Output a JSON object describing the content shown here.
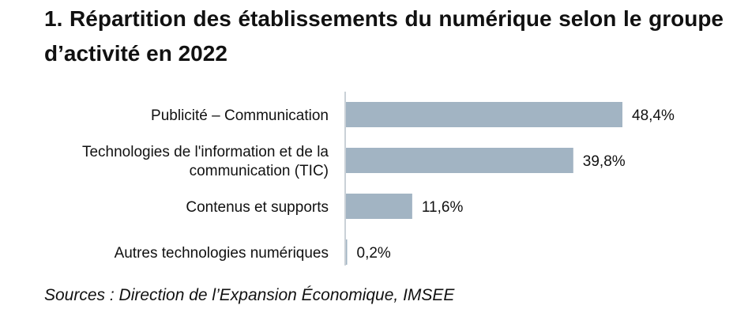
{
  "title": "1. Répartition des établissements du numérique selon le groupe d’activité en 2022",
  "source": "Sources : Direction de l’Expansion Économique, IMSEE",
  "chart_data": {
    "type": "bar",
    "orientation": "horizontal",
    "categories": [
      [
        "Publicité – Communication"
      ],
      [
        "Technologies de l'information et de la",
        "communication (TIC)"
      ],
      [
        "Contenus et supports"
      ],
      [
        "Autres technologies numériques"
      ]
    ],
    "values": [
      48.4,
      39.8,
      11.6,
      0.2
    ],
    "value_labels": [
      "48,4%",
      "39,8%",
      "11,6%",
      "0,2%"
    ],
    "unit": "%",
    "xlim": [
      0,
      48.4
    ],
    "bar_color": "#a2b4c3",
    "axis_color": "#b9c2ca",
    "grid": false,
    "legend": "none"
  }
}
